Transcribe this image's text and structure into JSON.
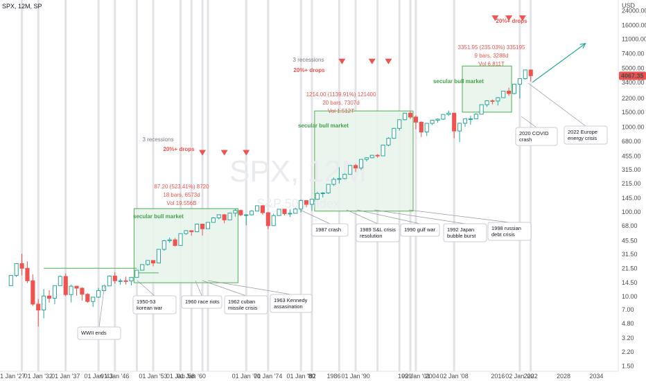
{
  "header": {
    "symbol_info": "SPX, 12M, SP"
  },
  "watermark": {
    "main": "SPX, 12M",
    "sub": "S&P 500 Index"
  },
  "price_axis": {
    "currency": "USD",
    "ticks": [
      "24000.00",
      "16000.00",
      "11000.00",
      "7400.00",
      "5000.00",
      "3400.00",
      "2200.00",
      "1500.00",
      "1000.00",
      "680.00",
      "455.00",
      "315.00",
      "215.00",
      "145.00",
      "100.00",
      "68.00",
      "45.50",
      "31.50",
      "21.50",
      "14.50",
      "10.00",
      "7.00",
      "4.80",
      "3.20",
      "2.20",
      "1.50"
    ],
    "last_price": "4067.35",
    "last_price_color": "#ef5350"
  },
  "time_axis": {
    "ticks": [
      "01 Jan '27",
      "01 Jan '32",
      "01 Jan '37",
      "01 Jan '43",
      "01 Jan '46",
      "01 Jan '53",
      "01 Jan '58",
      "01 Jan '60",
      "01 Jan '70",
      "01 Jan '74",
      "01 Jan '80",
      "'82",
      "1986",
      "01 Jan '90",
      "1999",
      "02 Jan '01",
      "2004",
      "02 Jan '08",
      "2016",
      "02 Jan '20",
      "2022",
      "2028",
      "2034"
    ]
  },
  "colors": {
    "up": "#26a69a",
    "down": "#ef5350",
    "box_fill": "#e6f4ea",
    "box_border": "#4caf50",
    "event_line": "#c8ccd4"
  },
  "annotations": {
    "bull1": {
      "label": "secular bull market",
      "stats1": "87.20 (523.41%) 8720",
      "stats2": "18 bars, 6573d",
      "stats3": "Vol 19.556B",
      "recessions": "3 recessions",
      "drops": "20%+ drops"
    },
    "bull2": {
      "label": "secular bull market",
      "stats1": "1214.00 (1139.91%) 121400",
      "stats2": "20 bars, 7307d",
      "stats3": "Vol 1.512T",
      "recessions": "3 recessions",
      "drops": "20%+ drops"
    },
    "bull3": {
      "label": "secular bull market",
      "stats1": "3351.95 (235.03%) 335195",
      "stats2": "9 bars, 3288d",
      "stats3": "Vol 6.811T",
      "drops": "20%+ drops"
    }
  },
  "events": [
    {
      "lines": [
        "WWII ends"
      ]
    },
    {
      "lines": [
        "1950-53",
        "korean war"
      ]
    },
    {
      "lines": [
        "1960 race riots"
      ]
    },
    {
      "lines": [
        "1962 cuban",
        "missile crisis"
      ]
    },
    {
      "lines": [
        "1963 Kennedy",
        "assasination"
      ]
    },
    {
      "lines": [
        "1987 crash"
      ]
    },
    {
      "lines": [
        "1989 S&L crisis",
        "resolution"
      ]
    },
    {
      "lines": [
        "1990 gulf war"
      ]
    },
    {
      "lines": [
        "1992 Japan",
        "bubble burst"
      ]
    },
    {
      "lines": [
        "1998 russian",
        "debt crisis"
      ]
    },
    {
      "lines": [
        "2020 COVID",
        "crash"
      ]
    },
    {
      "lines": [
        "2022 Europe",
        "energy crisis"
      ]
    }
  ],
  "chart_data": {
    "type": "candlestick",
    "interval": "12M",
    "y_scale": "log",
    "ylim": [
      1.3,
      32000
    ],
    "xlim": [
      1925,
      2038
    ],
    "ylabel": "USD",
    "candles": [
      {
        "x": 1927,
        "o": 13.4,
        "h": 17.7,
        "l": 13.2,
        "c": 17.7
      },
      {
        "x": 1928,
        "o": 17.7,
        "h": 24.4,
        "l": 16.9,
        "c": 24.4
      },
      {
        "x": 1929,
        "o": 24.4,
        "h": 31.9,
        "l": 17.7,
        "c": 21.5
      },
      {
        "x": 1930,
        "o": 21.5,
        "h": 25.9,
        "l": 14.4,
        "c": 15.3
      },
      {
        "x": 1931,
        "o": 15.3,
        "h": 18.2,
        "l": 7.7,
        "c": 8.1
      },
      {
        "x": 1932,
        "o": 8.1,
        "h": 9.3,
        "l": 4.4,
        "c": 6.9
      },
      {
        "x": 1933,
        "o": 6.9,
        "h": 12.2,
        "l": 5.5,
        "c": 10.1
      },
      {
        "x": 1934,
        "o": 10.1,
        "h": 11.8,
        "l": 8.4,
        "c": 9.5
      },
      {
        "x": 1935,
        "o": 9.5,
        "h": 13.5,
        "l": 8.1,
        "c": 13.4
      },
      {
        "x": 1936,
        "o": 13.4,
        "h": 17.7,
        "l": 13.2,
        "c": 17.2
      },
      {
        "x": 1937,
        "o": 17.2,
        "h": 18.7,
        "l": 10.1,
        "c": 10.5
      },
      {
        "x": 1938,
        "o": 10.5,
        "h": 13.8,
        "l": 8.5,
        "c": 13.2
      },
      {
        "x": 1939,
        "o": 13.2,
        "h": 13.2,
        "l": 10.2,
        "c": 12.5
      },
      {
        "x": 1940,
        "o": 12.5,
        "h": 12.8,
        "l": 8.9,
        "c": 10.6
      },
      {
        "x": 1941,
        "o": 10.6,
        "h": 10.9,
        "l": 8.4,
        "c": 8.7
      },
      {
        "x": 1942,
        "o": 8.7,
        "h": 9.8,
        "l": 7.5,
        "c": 9.8
      },
      {
        "x": 1943,
        "o": 9.8,
        "h": 12.6,
        "l": 9.6,
        "c": 11.7
      },
      {
        "x": 1944,
        "o": 11.7,
        "h": 13.3,
        "l": 11.5,
        "c": 13.3
      },
      {
        "x": 1945,
        "o": 13.3,
        "h": 17.7,
        "l": 13.2,
        "c": 17.4
      },
      {
        "x": 1946,
        "o": 17.4,
        "h": 19.3,
        "l": 14.1,
        "c": 15.3
      },
      {
        "x": 1947,
        "o": 15.3,
        "h": 16.2,
        "l": 13.7,
        "c": 15.3
      },
      {
        "x": 1948,
        "o": 15.3,
        "h": 17.1,
        "l": 13.8,
        "c": 15.2
      },
      {
        "x": 1949,
        "o": 15.2,
        "h": 16.8,
        "l": 13.5,
        "c": 16.8
      },
      {
        "x": 1950,
        "o": 16.8,
        "h": 20.4,
        "l": 16.7,
        "c": 20.4
      },
      {
        "x": 1951,
        "o": 20.4,
        "h": 23.9,
        "l": 20.7,
        "c": 23.8
      },
      {
        "x": 1952,
        "o": 23.8,
        "h": 26.6,
        "l": 23.1,
        "c": 26.6
      },
      {
        "x": 1953,
        "o": 26.6,
        "h": 26.7,
        "l": 22.7,
        "c": 24.8
      },
      {
        "x": 1954,
        "o": 24.8,
        "h": 36.0,
        "l": 24.8,
        "c": 35.98
      },
      {
        "x": 1955,
        "o": 35.98,
        "h": 46.4,
        "l": 34.6,
        "c": 45.5
      },
      {
        "x": 1956,
        "o": 45.5,
        "h": 49.6,
        "l": 43.1,
        "c": 46.7
      },
      {
        "x": 1957,
        "o": 46.7,
        "h": 49.1,
        "l": 38.9,
        "c": 39.99
      },
      {
        "x": 1958,
        "o": 39.99,
        "h": 55.2,
        "l": 40.3,
        "c": 55.2
      },
      {
        "x": 1959,
        "o": 55.2,
        "h": 60.7,
        "l": 53.6,
        "c": 59.9
      },
      {
        "x": 1960,
        "o": 59.9,
        "h": 60.4,
        "l": 52.2,
        "c": 58.1
      },
      {
        "x": 1961,
        "o": 58.1,
        "h": 72.6,
        "l": 57.6,
        "c": 71.6
      },
      {
        "x": 1962,
        "o": 71.6,
        "h": 71.1,
        "l": 52.3,
        "c": 63.1
      },
      {
        "x": 1963,
        "o": 63.1,
        "h": 75.0,
        "l": 62.7,
        "c": 75.0
      },
      {
        "x": 1964,
        "o": 75.0,
        "h": 86.3,
        "l": 75.4,
        "c": 84.8
      },
      {
        "x": 1965,
        "o": 84.8,
        "h": 92.6,
        "l": 81.6,
        "c": 92.4
      },
      {
        "x": 1966,
        "o": 92.4,
        "h": 94.1,
        "l": 73.2,
        "c": 80.3
      },
      {
        "x": 1967,
        "o": 80.3,
        "h": 97.6,
        "l": 80.4,
        "c": 96.5
      },
      {
        "x": 1968,
        "o": 96.5,
        "h": 108.4,
        "l": 87.7,
        "c": 103.9
      },
      {
        "x": 1969,
        "o": 103.9,
        "h": 106.2,
        "l": 89.2,
        "c": 92.1
      },
      {
        "x": 1970,
        "o": 92.1,
        "h": 93.5,
        "l": 69.3,
        "c": 92.2
      },
      {
        "x": 1971,
        "o": 92.2,
        "h": 104.8,
        "l": 90.2,
        "c": 102.1
      },
      {
        "x": 1972,
        "o": 102.1,
        "h": 119.1,
        "l": 101.7,
        "c": 118.1
      },
      {
        "x": 1973,
        "o": 118.1,
        "h": 120.2,
        "l": 92.2,
        "c": 97.6
      },
      {
        "x": 1974,
        "o": 97.6,
        "h": 99.8,
        "l": 62.3,
        "c": 68.6
      },
      {
        "x": 1975,
        "o": 68.6,
        "h": 95.6,
        "l": 70.0,
        "c": 90.2
      },
      {
        "x": 1976,
        "o": 90.2,
        "h": 107.8,
        "l": 90.9,
        "c": 107.5
      },
      {
        "x": 1977,
        "o": 107.5,
        "h": 107.0,
        "l": 90.7,
        "c": 95.1
      },
      {
        "x": 1978,
        "o": 95.1,
        "h": 106.9,
        "l": 86.9,
        "c": 96.1
      },
      {
        "x": 1979,
        "o": 96.1,
        "h": 111.3,
        "l": 96.1,
        "c": 107.9
      },
      {
        "x": 1980,
        "o": 107.9,
        "h": 140.5,
        "l": 98.2,
        "c": 135.8
      },
      {
        "x": 1981,
        "o": 135.8,
        "h": 138.1,
        "l": 112.8,
        "c": 122.6
      },
      {
        "x": 1982,
        "o": 122.6,
        "h": 143.0,
        "l": 102.4,
        "c": 140.6
      },
      {
        "x": 1983,
        "o": 140.6,
        "h": 172.6,
        "l": 138.3,
        "c": 164.9
      },
      {
        "x": 1984,
        "o": 164.9,
        "h": 170.4,
        "l": 147.8,
        "c": 167.2
      },
      {
        "x": 1985,
        "o": 167.2,
        "h": 212.0,
        "l": 163.4,
        "c": 211.3
      },
      {
        "x": 1986,
        "o": 211.3,
        "h": 254.0,
        "l": 203.5,
        "c": 242.2
      },
      {
        "x": 1987,
        "o": 242.2,
        "h": 336.8,
        "l": 216.5,
        "c": 247.1
      },
      {
        "x": 1988,
        "o": 247.1,
        "h": 283.7,
        "l": 242.6,
        "c": 277.7
      },
      {
        "x": 1989,
        "o": 277.7,
        "h": 359.8,
        "l": 275.3,
        "c": 353.4
      },
      {
        "x": 1990,
        "o": 353.4,
        "h": 369.8,
        "l": 295.5,
        "c": 330.2
      },
      {
        "x": 1991,
        "o": 330.2,
        "h": 418.3,
        "l": 311.5,
        "c": 417.1
      },
      {
        "x": 1992,
        "o": 417.1,
        "h": 441.3,
        "l": 394.5,
        "c": 435.7
      },
      {
        "x": 1993,
        "o": 435.7,
        "h": 470.9,
        "l": 429.0,
        "c": 466.5
      },
      {
        "x": 1994,
        "o": 466.5,
        "h": 482.9,
        "l": 435.9,
        "c": 459.3
      },
      {
        "x": 1995,
        "o": 459.3,
        "h": 621.7,
        "l": 459.1,
        "c": 615.9
      },
      {
        "x": 1996,
        "o": 615.9,
        "h": 761.8,
        "l": 597.3,
        "c": 740.7
      },
      {
        "x": 1997,
        "o": 740.7,
        "h": 983.8,
        "l": 733.5,
        "c": 970.4
      },
      {
        "x": 1998,
        "o": 970.4,
        "h": 1244.9,
        "l": 912.8,
        "c": 1229.2
      },
      {
        "x": 1999,
        "o": 1229.2,
        "h": 1473.1,
        "l": 1205.5,
        "c": 1469.3
      },
      {
        "x": 2000,
        "o": 1469.3,
        "h": 1552.9,
        "l": 1254.1,
        "c": 1320.3
      },
      {
        "x": 2001,
        "o": 1320.3,
        "h": 1383.4,
        "l": 944.8,
        "c": 1148.1
      },
      {
        "x": 2002,
        "o": 1148.1,
        "h": 1176.9,
        "l": 768.6,
        "c": 879.8
      },
      {
        "x": 2003,
        "o": 879.8,
        "h": 1112.0,
        "l": 788.9,
        "c": 1111.9
      },
      {
        "x": 2004,
        "o": 1111.9,
        "h": 1217.9,
        "l": 1060.7,
        "c": 1211.9
      },
      {
        "x": 2005,
        "o": 1211.9,
        "h": 1275.8,
        "l": 1136.2,
        "c": 1248.3
      },
      {
        "x": 2006,
        "o": 1248.3,
        "h": 1431.8,
        "l": 1219.3,
        "c": 1418.3
      },
      {
        "x": 2007,
        "o": 1418.3,
        "h": 1576.1,
        "l": 1363.9,
        "c": 1468.4
      },
      {
        "x": 2008,
        "o": 1468.4,
        "h": 1471.8,
        "l": 741.0,
        "c": 903.3
      },
      {
        "x": 2009,
        "o": 903.3,
        "h": 1130.4,
        "l": 666.8,
        "c": 1115.1
      },
      {
        "x": 2010,
        "o": 1115.1,
        "h": 1262.6,
        "l": 1010.9,
        "c": 1257.6
      },
      {
        "x": 2011,
        "o": 1257.6,
        "h": 1370.6,
        "l": 1074.8,
        "c": 1257.6
      },
      {
        "x": 2012,
        "o": 1257.6,
        "h": 1474.5,
        "l": 1258.9,
        "c": 1426.2
      },
      {
        "x": 2013,
        "o": 1426.2,
        "h": 1849.4,
        "l": 1426.2,
        "c": 1848.4
      },
      {
        "x": 2014,
        "o": 1848.4,
        "h": 2093.6,
        "l": 1737.9,
        "c": 2058.9
      },
      {
        "x": 2015,
        "o": 2058.9,
        "h": 2134.7,
        "l": 1867.0,
        "c": 2043.9
      },
      {
        "x": 2016,
        "o": 2043.9,
        "h": 2277.5,
        "l": 1810.1,
        "c": 2238.8
      },
      {
        "x": 2017,
        "o": 2238.8,
        "h": 2694.9,
        "l": 2245.1,
        "c": 2673.6
      },
      {
        "x": 2018,
        "o": 2673.6,
        "h": 2940.9,
        "l": 2346.6,
        "c": 2506.9
      },
      {
        "x": 2019,
        "o": 2506.9,
        "h": 3247.9,
        "l": 2443.9,
        "c": 3230.8
      },
      {
        "x": 2020,
        "o": 3230.8,
        "h": 3760.2,
        "l": 2191.9,
        "c": 3756.1
      },
      {
        "x": 2021,
        "o": 3756.1,
        "h": 4818.6,
        "l": 3662.7,
        "c": 4766.2
      },
      {
        "x": 2022,
        "o": 4766.2,
        "h": 4818.6,
        "l": 3491.6,
        "c": 4067.35
      }
    ],
    "bull_markets": [
      {
        "x0": 1949.5,
        "x1": 1968.5,
        "y0": 14.5,
        "y1": 109
      },
      {
        "x0": 1982.5,
        "x1": 2000.5,
        "y0": 102,
        "y1": 1560
      },
      {
        "x0": 2009.5,
        "x1": 2018.5,
        "y0": 1510,
        "y1": 5300
      }
    ],
    "drop_markers": [
      {
        "x": 1962,
        "y": 500
      },
      {
        "x": 1966,
        "y": 500
      },
      {
        "x": 1970,
        "y": 500
      },
      {
        "x": 1987.5,
        "y": 6000
      },
      {
        "x": 1993,
        "y": 6000
      },
      {
        "x": 1996,
        "y": 6000
      },
      {
        "x": 2015.5,
        "y": 19500
      },
      {
        "x": 2018,
        "y": 19500
      },
      {
        "x": 2020.5,
        "y": 19500
      }
    ],
    "event_years": [
      1929,
      1932,
      1937,
      1943,
      1946,
      1950,
      1953,
      1958,
      1960,
      1962,
      1963,
      1970,
      1974,
      1980,
      1982,
      1987,
      1990,
      1994,
      1998,
      2000,
      2001,
      2008,
      2020,
      2022
    ],
    "projection": {
      "from": {
        "x": 2022.3,
        "y": 3400
      },
      "to": {
        "x": 2032,
        "y": 9800
      }
    }
  }
}
